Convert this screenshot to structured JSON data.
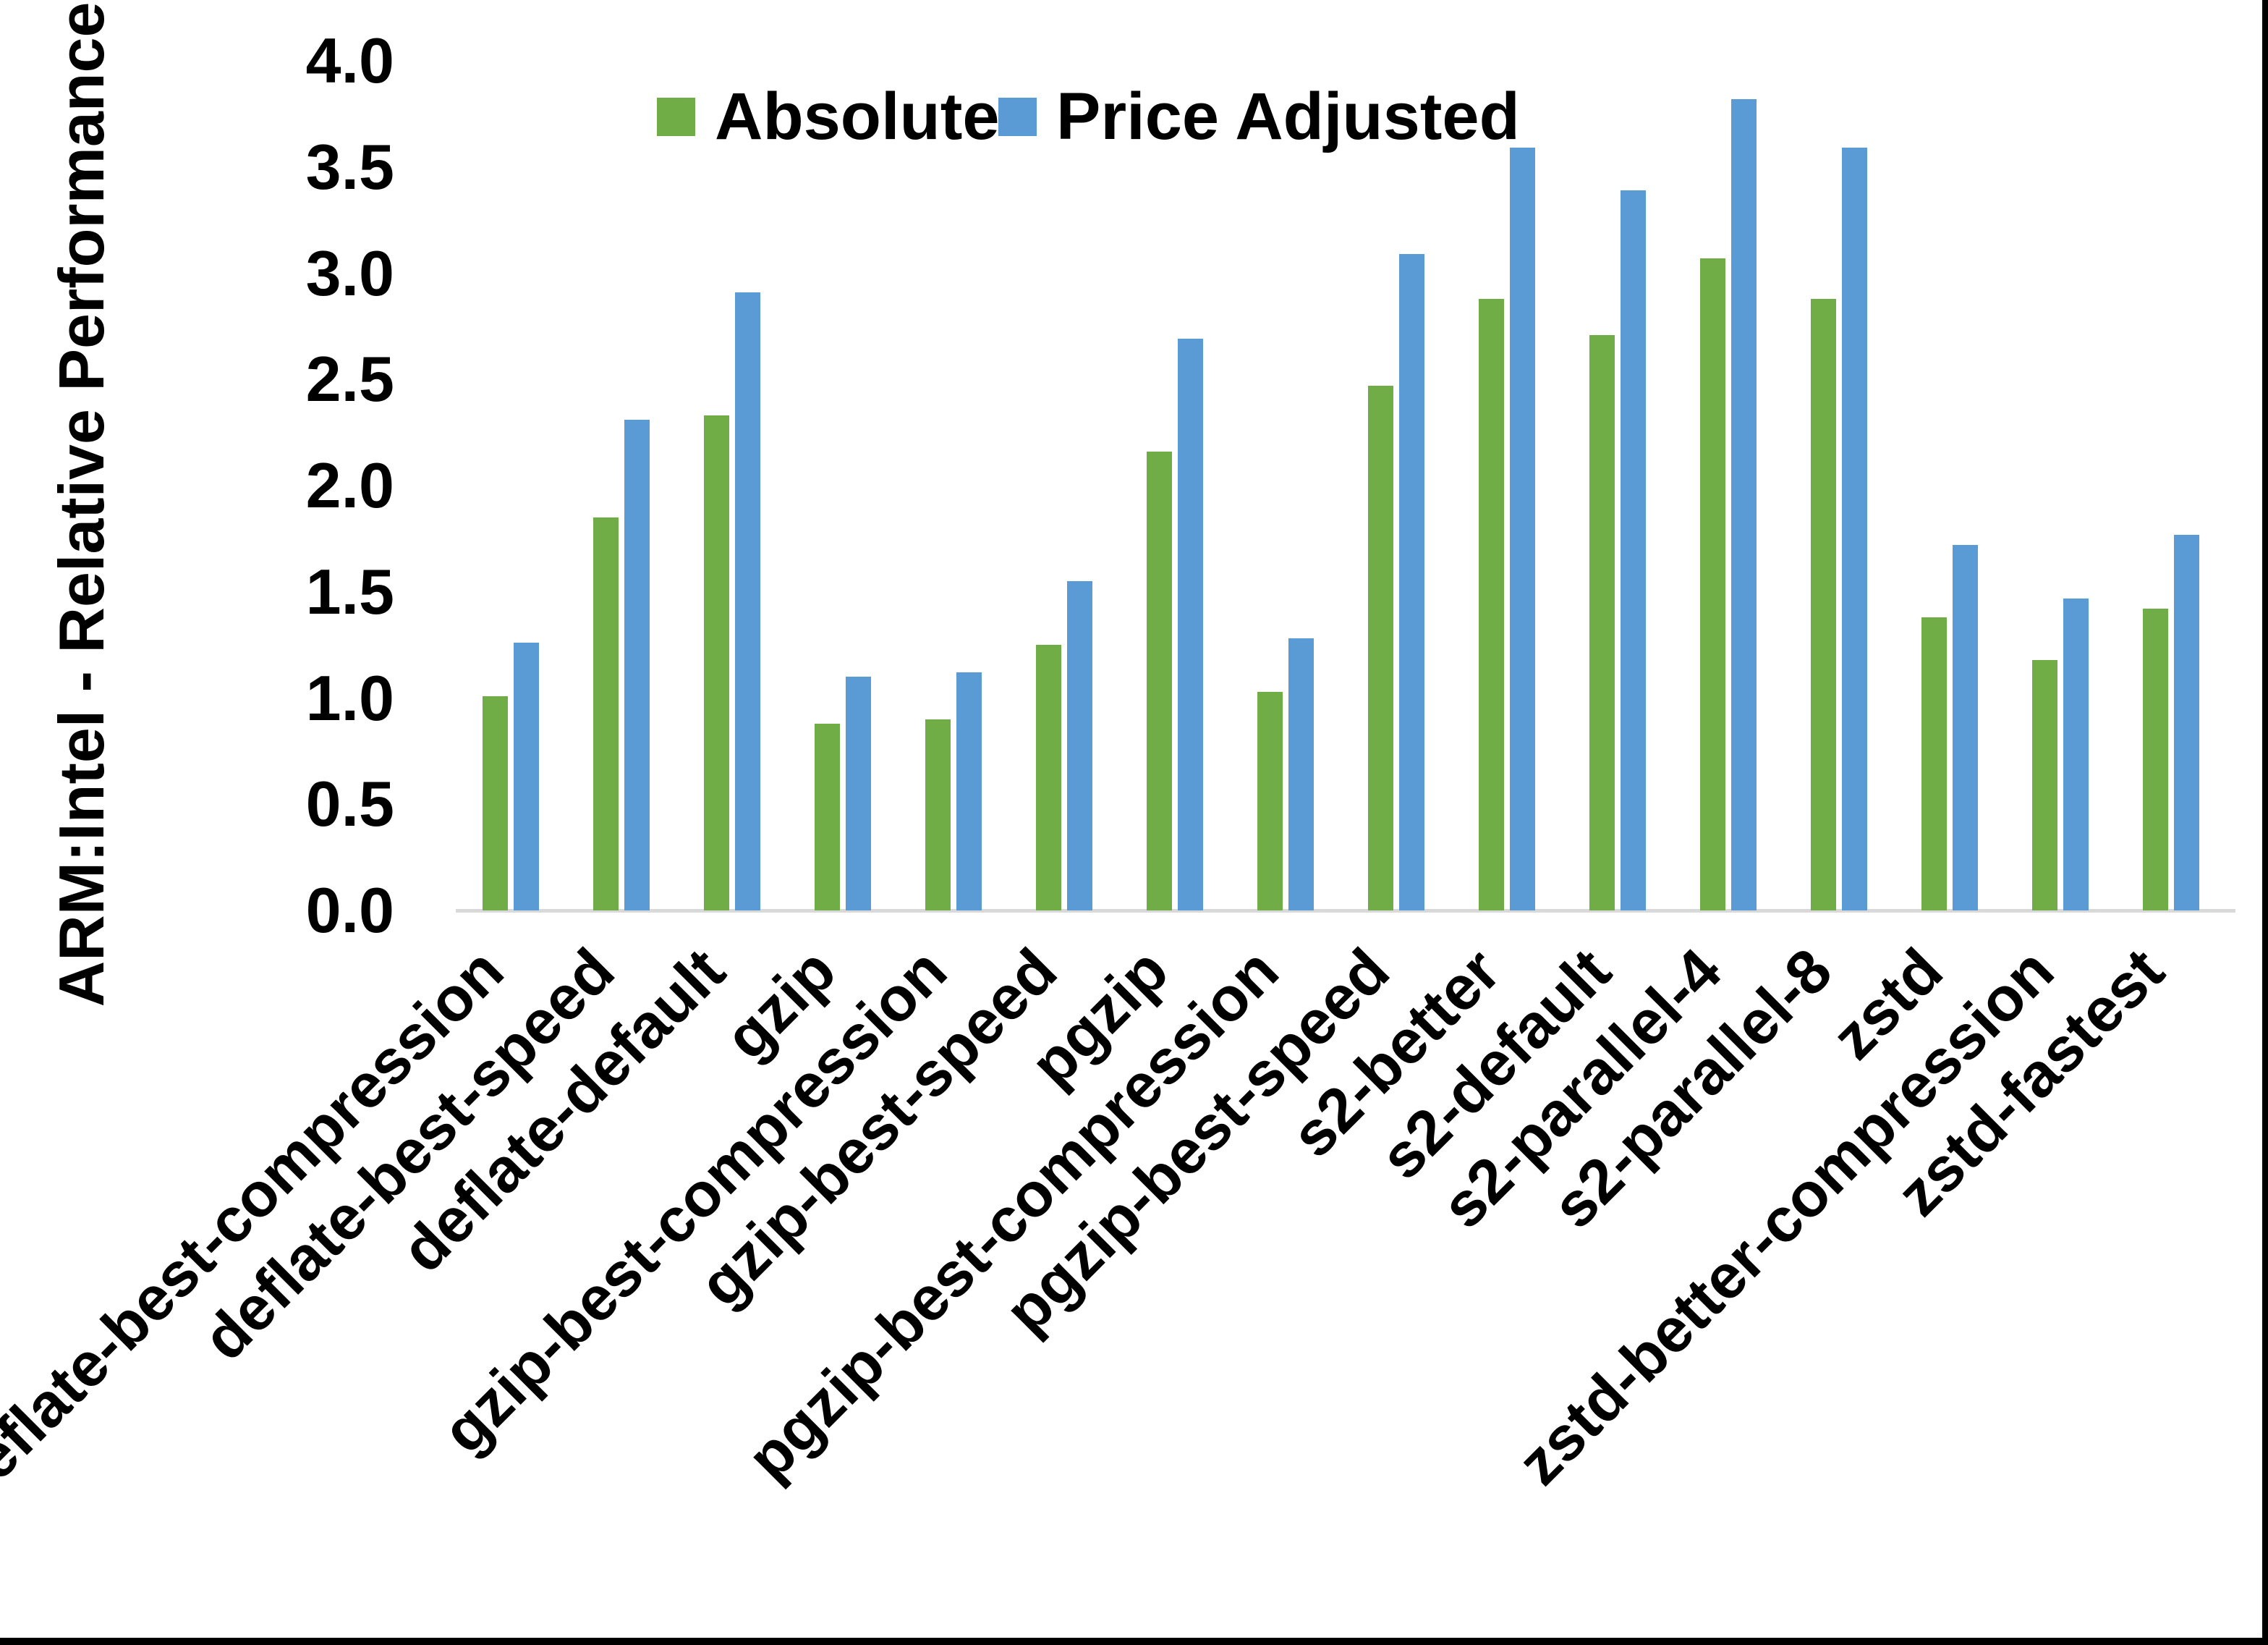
{
  "figure": {
    "background": "#FFFFFF",
    "frame_color": "#000000"
  },
  "axis": {
    "y_title": "ARM:Intel - Relative Performance",
    "axis_line_color": "#D9D9D9",
    "tick_color": "#000000"
  },
  "legend": {
    "items": [
      {
        "label": "Absolute",
        "color": "#70AD47"
      },
      {
        "label": "Price Adjusted",
        "color": "#5B9BD5"
      }
    ]
  },
  "chart_data": {
    "type": "bar",
    "title": "",
    "xlabel": "",
    "ylabel": "ARM:Intel - Relative Performance",
    "ylim": [
      0.0,
      4.0
    ],
    "ytick_step": 0.5,
    "grid": false,
    "legend_position": "top-center",
    "categories": [
      "deflate-best-compression",
      "deflate-best-speed",
      "deflate-default",
      "gzip",
      "gzip-best-compression",
      "gzip-best-speed",
      "pgzip",
      "pgzip-best-compression",
      "pgzip-best-speed",
      "s2-better",
      "s2-default",
      "s2-parallel-4",
      "s2-parallel-8",
      "zstd",
      "zstd-better-compression",
      "zstd-fastest"
    ],
    "series": [
      {
        "name": "Absolute",
        "color": "#70AD47",
        "values": [
          1.01,
          1.85,
          2.33,
          0.88,
          0.9,
          1.25,
          2.16,
          1.03,
          2.47,
          2.88,
          2.71,
          3.07,
          2.88,
          1.38,
          1.18,
          1.42
        ]
      },
      {
        "name": "Price Adjusted",
        "color": "#5B9BD5",
        "values": [
          1.26,
          2.31,
          2.91,
          1.1,
          1.12,
          1.55,
          2.69,
          1.28,
          3.09,
          3.59,
          3.39,
          3.82,
          3.59,
          1.72,
          1.47,
          1.77
        ]
      }
    ]
  }
}
